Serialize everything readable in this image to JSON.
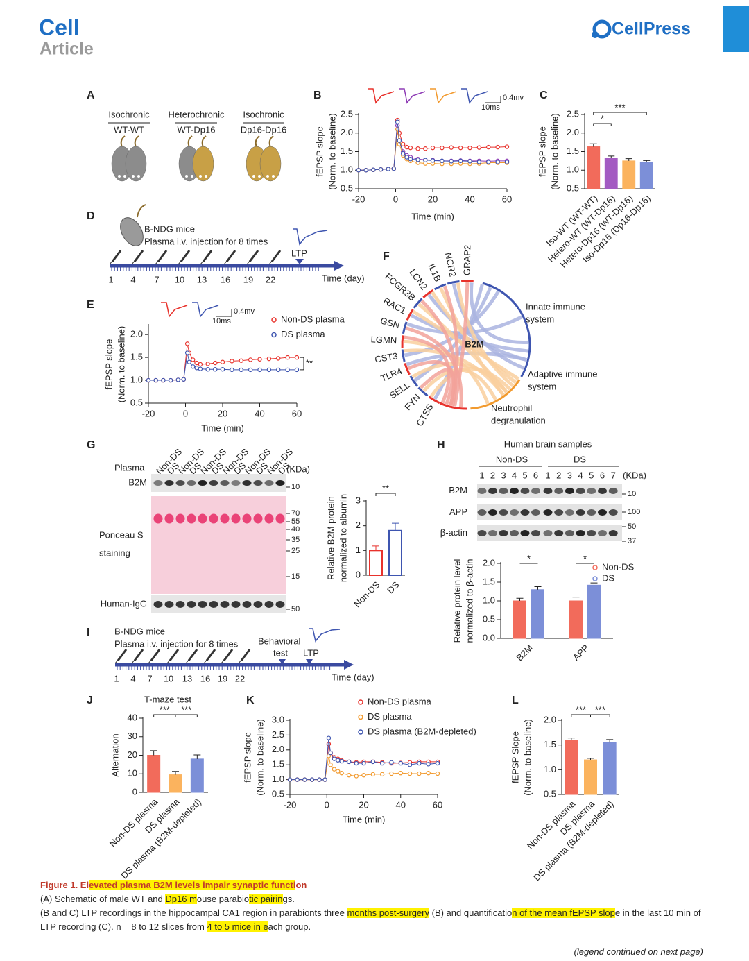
{
  "header": {
    "journal": "Cell",
    "section": "Article",
    "publisher": "CellPress"
  },
  "panels": {
    "a": {
      "label": "A",
      "groups": [
        {
          "type": "Isochronic",
          "pair": "WT-WT"
        },
        {
          "type": "Heterochronic",
          "pair": "WT-Dp16"
        },
        {
          "type": "Isochronic",
          "pair": "Dp16-Dp16"
        }
      ]
    },
    "b": {
      "label": "B",
      "scale": "0.4mv",
      "time": "10ms"
    },
    "c": {
      "label": "C"
    },
    "d": {
      "label": "D",
      "mouse": "B-NDG mice",
      "protocol": "Plasma i.v. injection for 8 times",
      "event": "LTP",
      "axis": "Time (day)",
      "days": [
        "1",
        "4",
        "7",
        "10",
        "13",
        "16",
        "19",
        "22"
      ]
    },
    "e": {
      "label": "E",
      "scale": "0.4mv",
      "time": "10ms"
    },
    "f": {
      "label": "F",
      "center": "B2M",
      "genes": [
        "CTSS",
        "FYN",
        "SELL",
        "TLR4",
        "CST3",
        "LGMN",
        "GSN",
        "RAC1",
        "FCGR3B",
        "LCN2",
        "IL1B",
        "NCR2",
        "GRAP2"
      ],
      "pathways": [
        [
          "Innate immune",
          "system"
        ],
        [
          "Adaptive immune",
          "system"
        ],
        [
          "Neutrophil",
          "degranulation"
        ]
      ]
    },
    "g": {
      "label": "G",
      "row_header": "Plasma",
      "lanes": [
        "Non-DS",
        "DS",
        "Non-DS",
        "DS",
        "Non-DS",
        "DS",
        "Non-DS",
        "DS",
        "Non-DS",
        "DS",
        "Non-DS",
        "DS"
      ],
      "unit": "(KDa)",
      "b2m": {
        "name": "B2M",
        "marker": "10"
      },
      "ponceau": {
        "name": [
          "Ponceau S",
          "staining"
        ],
        "markers": [
          "70",
          "55",
          "40",
          "35",
          "25",
          "15"
        ]
      },
      "igg": {
        "name": "Human-IgG",
        "marker": "50"
      }
    },
    "h": {
      "label": "H",
      "title": "Human  brain samples",
      "groups": [
        "Non-DS",
        "DS"
      ],
      "lanes": [
        "1",
        "2",
        "3",
        "4",
        "5",
        "6",
        "1",
        "2",
        "3",
        "4",
        "5",
        "6",
        "7"
      ],
      "unit": "(KDa)",
      "blots": [
        {
          "name": "B2M",
          "markers": [
            "10"
          ]
        },
        {
          "name": "APP",
          "markers": [
            "100"
          ]
        },
        {
          "name": "β-actin",
          "markers": [
            "50",
            "37"
          ]
        }
      ]
    },
    "i": {
      "label": "I",
      "mouse": "B-NDG mice",
      "protocol": "Plasma i.v. injection for 8 times",
      "events": [
        [
          "Behavioral",
          "test"
        ],
        [
          "LTP"
        ]
      ],
      "axis": "Time (day)",
      "days": [
        "1",
        "4",
        "7",
        "10",
        "13",
        "16",
        "19",
        "22"
      ]
    },
    "j": {
      "label": "J"
    },
    "k": {
      "label": "K"
    },
    "l": {
      "label": "L"
    }
  },
  "chart_data": [
    {
      "type": "line",
      "ylabel": [
        "fEPSP slope",
        "(Norm. to baseline)"
      ],
      "xlabel": "Time (min)",
      "xlim": [
        -20,
        60
      ],
      "xticks": [
        -20,
        0,
        20,
        40,
        60
      ],
      "ylim": [
        0.5,
        2.5
      ],
      "yticks": [
        0.5,
        {
          "value": 1,
          "label": "1.0"
        },
        1.5,
        {
          "value": 2,
          "label": "2.0"
        },
        2.5
      ],
      "x": [
        -20,
        -16,
        -12,
        -8,
        -4,
        -1,
        1,
        2,
        4,
        6,
        8,
        12,
        16,
        20,
        25,
        30,
        35,
        40,
        45,
        50,
        55,
        60
      ],
      "series": [
        {
          "color": "#e8322c",
          "values": [
            1,
            1,
            1.01,
            1.02,
            1.03,
            1.04,
            2.35,
            2.0,
            1.7,
            1.62,
            1.6,
            1.58,
            1.58,
            1.6,
            1.6,
            1.61,
            1.6,
            1.6,
            1.61,
            1.62,
            1.62,
            1.63
          ]
        },
        {
          "color": "#8e3bb5",
          "values": [
            1,
            1,
            1.01,
            1.02,
            1.03,
            1.04,
            2.2,
            1.8,
            1.5,
            1.4,
            1.35,
            1.3,
            1.28,
            1.27,
            1.25,
            1.25,
            1.26,
            1.25,
            1.25,
            1.24,
            1.25,
            1.25
          ]
        },
        {
          "color": "#f29a2e",
          "values": [
            1,
            1,
            1.01,
            1.02,
            1.03,
            1.04,
            2.1,
            1.7,
            1.4,
            1.3,
            1.25,
            1.2,
            1.18,
            1.18,
            1.17,
            1.17,
            1.18,
            1.17,
            1.18,
            1.2,
            1.2,
            1.2
          ]
        },
        {
          "color": "#3e55b0",
          "values": [
            1,
            1,
            1.01,
            1.02,
            1.03,
            1.04,
            2.3,
            1.8,
            1.45,
            1.35,
            1.3,
            1.28,
            1.27,
            1.26,
            1.25,
            1.24,
            1.25,
            1.24,
            1.22,
            1.22,
            1.22,
            1.22
          ]
        }
      ]
    },
    {
      "type": "bar",
      "ylabel": [
        "fEPSP slope",
        "(Norm. to baseline)"
      ],
      "categories": [
        "Iso-WT (WT-WT)",
        "Hetero-WT (WT-Dp16)",
        "Hetero-Dp16 (WT-Dp16)",
        "Iso-Dp16 (Dp16-Dp16)"
      ],
      "values": [
        1.63,
        1.33,
        1.25,
        1.22
      ],
      "errors": [
        0.08,
        0.05,
        0.06,
        0.04
      ],
      "colors": [
        "#f26b5b",
        "#a35bc2",
        "#fbb35e",
        "#7c8fd8"
      ],
      "ylim": [
        0.5,
        2.5
      ],
      "yticks": [
        0.5,
        {
          "value": 1,
          "label": "1.0"
        },
        1.5,
        {
          "value": 2,
          "label": "2.0"
        },
        2.5
      ],
      "significance": [
        "*",
        "***"
      ]
    },
    {
      "type": "line",
      "ylabel": [
        "fEPSP slope",
        "(Norm. to baseline)"
      ],
      "xlabel": "Time (min)",
      "xlim": [
        -20,
        60
      ],
      "xticks": [
        -20,
        0,
        20,
        40,
        60
      ],
      "ylim": [
        0.5,
        2.2
      ],
      "yticks": [
        0.5,
        {
          "value": 1,
          "label": "1.0"
        },
        1.5,
        {
          "value": 2,
          "label": "2.0"
        }
      ],
      "annotation": "**",
      "x": [
        -20,
        -16,
        -12,
        -8,
        -4,
        -1,
        1,
        2,
        4,
        6,
        8,
        12,
        16,
        20,
        25,
        30,
        35,
        40,
        45,
        50,
        55,
        60
      ],
      "series": [
        {
          "name": "Non-DS plasma",
          "color": "#e8322c",
          "values": [
            1,
            1,
            1,
            1,
            1.01,
            1.02,
            1.8,
            1.6,
            1.45,
            1.38,
            1.35,
            1.36,
            1.38,
            1.4,
            1.42,
            1.43,
            1.45,
            1.46,
            1.47,
            1.48,
            1.5,
            1.5
          ]
        },
        {
          "name": "DS plasma",
          "color": "#3e55b0",
          "values": [
            1,
            1,
            1,
            1,
            1.01,
            1.02,
            1.6,
            1.4,
            1.3,
            1.27,
            1.25,
            1.24,
            1.24,
            1.24,
            1.23,
            1.23,
            1.23,
            1.23,
            1.23,
            1.23,
            1.23,
            1.23
          ]
        }
      ]
    },
    {
      "type": "bar",
      "ylabel": [
        "Relative B2M protein",
        "normalized to albumin"
      ],
      "categories": [
        "Non-DS",
        "DS"
      ],
      "values": [
        1.0,
        1.8
      ],
      "errors": [
        0.18,
        0.3
      ],
      "colors": [
        "#e8322c",
        "#3e55b0"
      ],
      "outline": true,
      "ylim": [
        0,
        3
      ],
      "yticks": [
        0,
        1,
        2,
        3
      ],
      "significance": [
        "**"
      ]
    },
    {
      "type": "bar",
      "ylabel": [
        "Relative protein level",
        "normalized to β-actin"
      ],
      "categories": [
        "B2M",
        "APP"
      ],
      "series": [
        {
          "name": "Non-DS",
          "color": "#f26b5b",
          "values": [
            1.0,
            1.0
          ],
          "errors": [
            0.07,
            0.1
          ]
        },
        {
          "name": "DS",
          "color": "#7c8fd8",
          "values": [
            1.3,
            1.42
          ],
          "errors": [
            0.08,
            0.06
          ]
        }
      ],
      "ylim": [
        0,
        2
      ],
      "yticks": [
        {
          "value": 0,
          "label": "0.0"
        },
        0.5,
        {
          "value": 1,
          "label": "1.0"
        },
        1.5,
        {
          "value": 2,
          "label": "2.0"
        }
      ],
      "significance": [
        "*",
        "*"
      ]
    },
    {
      "type": "bar",
      "title": "T-maze test",
      "ylabel": [
        "Alternation"
      ],
      "categories": [
        "Non-DS plasma",
        "DS plasma",
        "DS plasma (B2M-depleted)"
      ],
      "values": [
        20,
        9.5,
        18
      ],
      "errors": [
        2.5,
        1.8,
        2.2
      ],
      "colors": [
        "#f26b5b",
        "#fbb35e",
        "#7c8fd8"
      ],
      "ylim": [
        0,
        40
      ],
      "yticks": [
        0,
        10,
        20,
        30,
        40
      ],
      "significance": [
        "***",
        "***"
      ]
    },
    {
      "type": "line",
      "ylabel": [
        "fEPSP slope",
        "(Norm. to baseline)"
      ],
      "xlabel": "Time (min)",
      "xlim": [
        -20,
        60
      ],
      "xticks": [
        -20,
        0,
        20,
        40,
        60
      ],
      "ylim": [
        0.5,
        3
      ],
      "yticks": [
        0.5,
        {
          "value": 1,
          "label": "1.0"
        },
        1.5,
        {
          "value": 2,
          "label": "2.0"
        },
        2.5,
        {
          "value": 3,
          "label": "3.0"
        }
      ],
      "x": [
        -20,
        -16,
        -12,
        -8,
        -4,
        -1,
        1,
        2,
        4,
        6,
        8,
        12,
        16,
        20,
        25,
        30,
        35,
        40,
        45,
        50,
        55,
        60
      ],
      "series": [
        {
          "name": "Non-DS plasma",
          "color": "#e8322c",
          "values": [
            1,
            1,
            1,
            1,
            1,
            1,
            2.2,
            1.9,
            1.75,
            1.7,
            1.65,
            1.6,
            1.58,
            1.6,
            1.6,
            1.58,
            1.55,
            1.56,
            1.58,
            1.6,
            1.6,
            1.6
          ]
        },
        {
          "name": "DS plasma",
          "color": "#f29a2e",
          "values": [
            1,
            1,
            1,
            1,
            1,
            1,
            1.8,
            1.5,
            1.35,
            1.28,
            1.22,
            1.15,
            1.12,
            1.15,
            1.18,
            1.18,
            1.2,
            1.22,
            1.2,
            1.2,
            1.22,
            1.2
          ]
        },
        {
          "name": "DS plasma (B2M-depleted)",
          "color": "#3e55b0",
          "values": [
            1,
            1,
            1,
            1,
            1,
            1,
            2.4,
            1.9,
            1.7,
            1.65,
            1.62,
            1.6,
            1.55,
            1.55,
            1.6,
            1.55,
            1.58,
            1.55,
            1.5,
            1.55,
            1.52,
            1.55
          ]
        }
      ]
    },
    {
      "type": "bar",
      "ylabel": [
        "fEPSP Slope",
        "(Norm. to baseline)"
      ],
      "categories": [
        "Non-DS plasma",
        "DS plasma",
        "DS plasma (B2M-depleted)"
      ],
      "values": [
        1.6,
        1.2,
        1.55
      ],
      "errors": [
        0.04,
        0.03,
        0.06
      ],
      "colors": [
        "#f26b5b",
        "#fbb35e",
        "#7c8fd8"
      ],
      "ylim": [
        0.5,
        2
      ],
      "yticks": [
        0.5,
        {
          "value": 1,
          "label": "1.0"
        },
        1.5,
        {
          "value": 2,
          "label": "2.0"
        }
      ],
      "significance": [
        "***",
        "***"
      ]
    }
  ],
  "caption": {
    "title": [
      {
        "text": "Figure 1. El"
      },
      {
        "text": "evated plasma B2M levels impair synaptic functi",
        "highlight": true
      },
      {
        "text": "on"
      }
    ],
    "paragraphs": [
      [
        {
          "text": "(A) Schematic of male WT and "
        },
        {
          "text": "Dp16 m",
          "highlight": true
        },
        {
          "text": "ouse parabio"
        },
        {
          "text": "tic pairin",
          "highlight": true
        },
        {
          "text": "gs."
        }
      ],
      [
        {
          "text": "(B and C) LTP recordings in the hippocampal CA1 region in parabionts three "
        },
        {
          "text": "months post-surgery",
          "highlight": true
        },
        {
          "text": " (B) and quantificatio"
        },
        {
          "text": "n of the mean fEPSP slop",
          "highlight": true
        },
        {
          "text": "e in the last 10 min of LTP recording (C). n = 8 to 12 slices from "
        },
        {
          "text": "4 to 5 mice in e",
          "highlight": true
        },
        {
          "text": "ach group."
        }
      ]
    ]
  },
  "footer": "(legend continued on next page)"
}
